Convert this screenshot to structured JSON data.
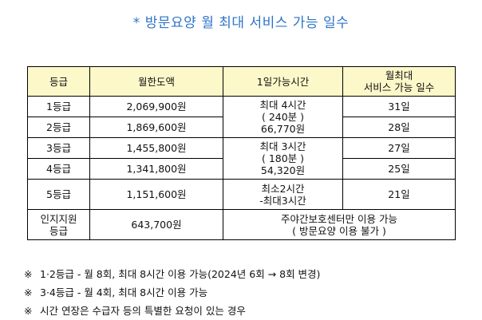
{
  "title": {
    "star": "*",
    "text": "방문요양 월 최대 서비스 가능 일수"
  },
  "table": {
    "headers": {
      "grade": "등급",
      "monthly_limit": "월한도액",
      "daily_time": "1일가능시간",
      "max_days_line1": "월최대",
      "max_days_line2": "서비스 가능 일수"
    },
    "rows": [
      {
        "grade": "1등급",
        "limit": "2,069,900원",
        "days": "31일"
      },
      {
        "grade": "2등급",
        "limit": "1,869,600원",
        "days": "28일"
      },
      {
        "grade": "3등급",
        "limit": "1,455,800원",
        "days": "27일"
      },
      {
        "grade": "4등급",
        "limit": "1,341,800원",
        "days": "25일"
      },
      {
        "grade": "5등급",
        "limit": "1,151,600원",
        "days": "21일"
      }
    ],
    "time_groups": [
      {
        "line1": "최대 4시간",
        "line2": "( 240분 )",
        "line3": "66,770원"
      },
      {
        "line1": "최대 3시간",
        "line2": "( 180분 )",
        "line3": "54,320원"
      },
      {
        "line1": "최소2시간",
        "line2": "-최대3시간"
      }
    ],
    "last_row": {
      "grade_line1": "인지지원",
      "grade_line2": "등급",
      "limit": "643,700원",
      "note_line1": "주야간보호센터만 이용 가능",
      "note_line2": "( 방문요양 이용 불가 )"
    }
  },
  "notes": [
    {
      "mark": "※",
      "text": "1·2등급 - 월 8회, 최대 8시간 이용 가능(2024년 6회 → 8회 변경)"
    },
    {
      "mark": "※",
      "text": "3·4등급 - 월 4회, 최대 8시간 이용 가능"
    },
    {
      "mark": "※",
      "text": "시간 연장은 수급자 등의 특별한 요청이 있는 경우"
    }
  ]
}
